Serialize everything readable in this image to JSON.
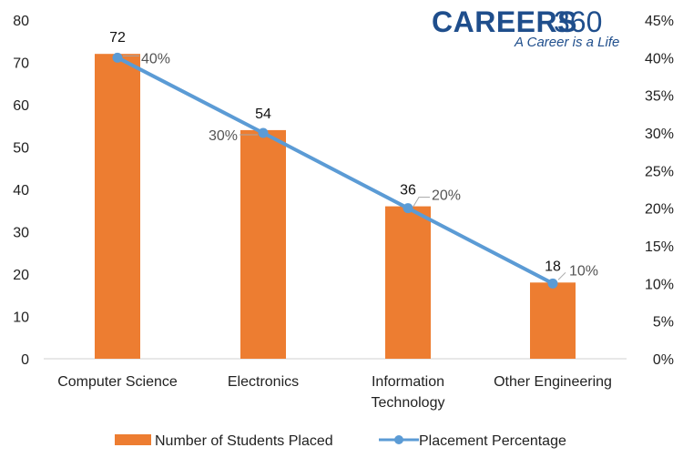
{
  "brand": {
    "name_bold": "CAREERS",
    "name_num": "360",
    "tagline": "A Career is a Life",
    "color": "#1f4e8c"
  },
  "chart_data": {
    "type": "bar",
    "categories": [
      [
        "Computer Science"
      ],
      [
        "Electronics"
      ],
      [
        "Information",
        "Technology"
      ],
      [
        "Other Engineering"
      ]
    ],
    "series": [
      {
        "name": "Number of Students Placed",
        "type": "bar",
        "axis": "left",
        "values": [
          72,
          54,
          36,
          18
        ],
        "color": "#ed7d31"
      },
      {
        "name": "Placement Percentage",
        "type": "line",
        "axis": "right",
        "values": [
          40,
          30,
          20,
          10
        ],
        "value_labels": [
          "40%",
          "30%",
          "20%",
          "10%"
        ],
        "color": "#5b9bd5"
      }
    ],
    "left_axis": {
      "min": 0,
      "max": 80,
      "ticks": [
        "0",
        "10",
        "20",
        "30",
        "40",
        "50",
        "60",
        "70",
        "80"
      ]
    },
    "right_axis": {
      "min": 0,
      "max": 45,
      "ticks": [
        "0%",
        "5%",
        "10%",
        "15%",
        "20%",
        "25%",
        "30%",
        "35%",
        "40%",
        "45%"
      ]
    },
    "grid": false,
    "legend_position": "bottom"
  }
}
